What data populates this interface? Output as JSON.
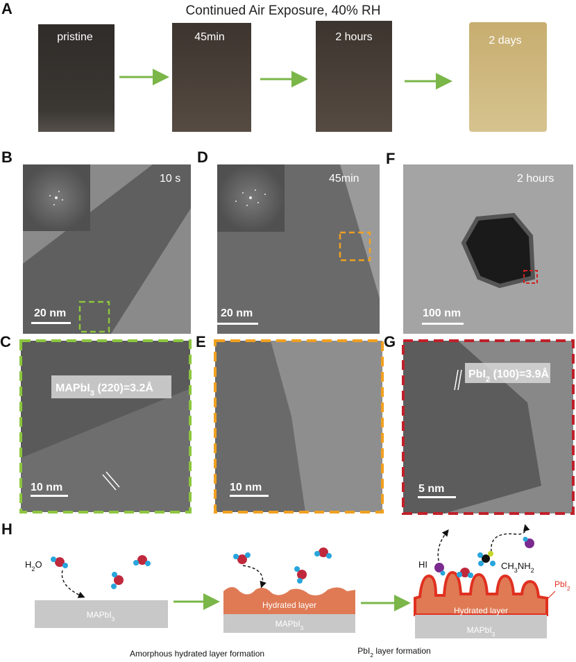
{
  "panel_labels": [
    "A",
    "B",
    "C",
    "D",
    "E",
    "F",
    "G",
    "H"
  ],
  "panel_a": {
    "title": "Continued Air Exposure, 40% RH",
    "photos": [
      "pristine",
      "45min",
      "2 hours",
      "2 days"
    ]
  },
  "panel_b": {
    "time": "10 s",
    "scale": "20 nm"
  },
  "panel_c": {
    "lattice": [
      "MAPbI",
      "3",
      " (220)=3.2Å"
    ],
    "scale": "10 nm"
  },
  "panel_d": {
    "time": "45min",
    "scale": "20 nm"
  },
  "panel_e": {
    "scale": "10 nm"
  },
  "panel_f": {
    "time": "2 hours",
    "scale": "100 nm"
  },
  "panel_g": {
    "lattice": [
      "PbI",
      "2",
      " (100)=3.9Å"
    ],
    "scale": "5 nm"
  },
  "panel_h": {
    "water": [
      "H",
      "2",
      "O"
    ],
    "substrate_1": [
      "MAPbI",
      "3"
    ],
    "hydrated_2": "Hydrated layer",
    "substrate_2": [
      "MAPbI",
      "3"
    ],
    "hi": "HI",
    "methylamine": [
      "CH",
      "3",
      "NH",
      "2"
    ],
    "pbi2": [
      "PbI",
      "2"
    ],
    "hydrated_3": "Hydrated layer",
    "substrate_3": [
      "MAPbI",
      "3"
    ],
    "caption_1": "Amorphous hydrated layer formation",
    "caption_2": [
      "PbI",
      "2",
      " layer formation"
    ]
  }
}
